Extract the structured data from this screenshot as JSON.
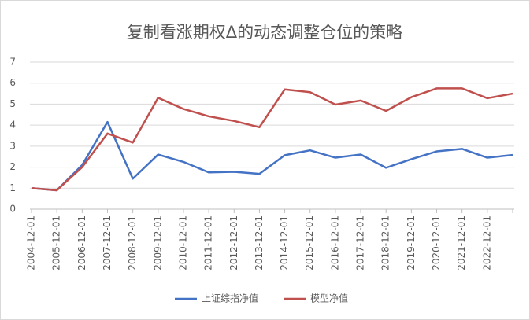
{
  "chart_data": {
    "type": "line",
    "title": "复制看涨期权Δ的动态调整仓位的策略",
    "categories": [
      "2004-12-01",
      "2005-12-01",
      "2006-12-01",
      "2007-12-01",
      "2008-12-01",
      "2009-12-01",
      "2010-12-01",
      "2011-12-01",
      "2012-12-01",
      "2013-12-01",
      "2014-12-01",
      "2015-12-01",
      "2016-12-01",
      "2017-12-01",
      "2018-12-01",
      "2019-12-01",
      "2020-12-01",
      "2021-12-01",
      "2022-12-01",
      null
    ],
    "series": [
      {
        "name": "上证综指净值",
        "color": "#4472c4",
        "values": [
          1.0,
          0.9,
          2.1,
          4.15,
          1.45,
          2.6,
          2.25,
          1.75,
          1.78,
          1.68,
          2.57,
          2.8,
          2.45,
          2.6,
          1.97,
          2.38,
          2.75,
          2.87,
          2.45,
          2.58
        ]
      },
      {
        "name": "模型净值",
        "color": "#c0504d",
        "values": [
          1.0,
          0.9,
          2.0,
          3.6,
          3.17,
          5.3,
          4.77,
          4.42,
          4.2,
          3.9,
          5.7,
          5.57,
          4.98,
          5.17,
          4.68,
          5.33,
          5.75,
          5.75,
          5.28,
          5.5
        ]
      }
    ],
    "ylim": [
      0,
      7
    ],
    "yticks": [
      0,
      1,
      2,
      3,
      4,
      5,
      6,
      7
    ],
    "grid": true,
    "legend": "bottom"
  }
}
